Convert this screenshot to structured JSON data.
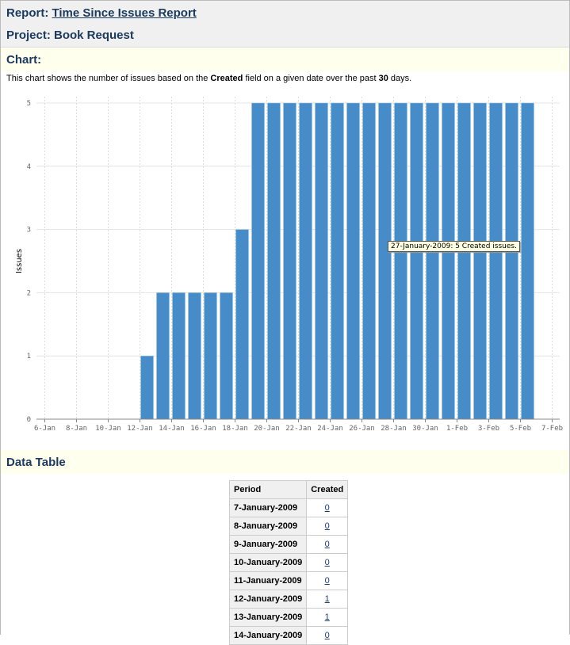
{
  "header": {
    "report_label": "Report:",
    "report_name": "Time Since Issues Report",
    "project_label": "Project: Book Request"
  },
  "chart_section": {
    "title": "Chart:",
    "desc_pre": "This chart shows the number of issues based on the ",
    "desc_field": "Created",
    "desc_mid": " field on a given date over the past ",
    "desc_days": "30",
    "desc_post": " days."
  },
  "tooltip": "27-January-2009: 5 Created issues.",
  "chart_data": {
    "type": "bar",
    "ylabel": "Issues",
    "ylim": [
      0,
      5
    ],
    "yticks": [
      "0",
      "1",
      "2",
      "3",
      "4",
      "5"
    ],
    "xticks": [
      "6-Jan",
      "8-Jan",
      "10-Jan",
      "12-Jan",
      "14-Jan",
      "16-Jan",
      "18-Jan",
      "20-Jan",
      "22-Jan",
      "24-Jan",
      "26-Jan",
      "28-Jan",
      "30-Jan",
      "1-Feb",
      "3-Feb",
      "5-Feb",
      "7-Feb"
    ],
    "categories": [
      "7-Jan",
      "8-Jan",
      "9-Jan",
      "10-Jan",
      "11-Jan",
      "12-Jan",
      "13-Jan",
      "14-Jan",
      "15-Jan",
      "16-Jan",
      "17-Jan",
      "18-Jan",
      "19-Jan",
      "20-Jan",
      "21-Jan",
      "22-Jan",
      "23-Jan",
      "24-Jan",
      "25-Jan",
      "26-Jan",
      "27-Jan",
      "28-Jan",
      "29-Jan",
      "30-Jan",
      "31-Jan",
      "1-Feb",
      "2-Feb",
      "3-Feb",
      "4-Feb",
      "5-Feb"
    ],
    "values": [
      0,
      0,
      0,
      0,
      0,
      1,
      2,
      2,
      2,
      2,
      2,
      3,
      5,
      5,
      5,
      5,
      5,
      5,
      5,
      5,
      5,
      5,
      5,
      5,
      5,
      5,
      5,
      5,
      5,
      5
    ],
    "color": "#468cc8"
  },
  "table_section": {
    "title": "Data Table"
  },
  "table": {
    "headers": [
      "Period",
      "Created"
    ],
    "rows": [
      [
        "7-January-2009",
        "0"
      ],
      [
        "8-January-2009",
        "0"
      ],
      [
        "9-January-2009",
        "0"
      ],
      [
        "10-January-2009",
        "0"
      ],
      [
        "11-January-2009",
        "0"
      ],
      [
        "12-January-2009",
        "1"
      ],
      [
        "13-January-2009",
        "1"
      ],
      [
        "14-January-2009",
        "0"
      ]
    ]
  }
}
